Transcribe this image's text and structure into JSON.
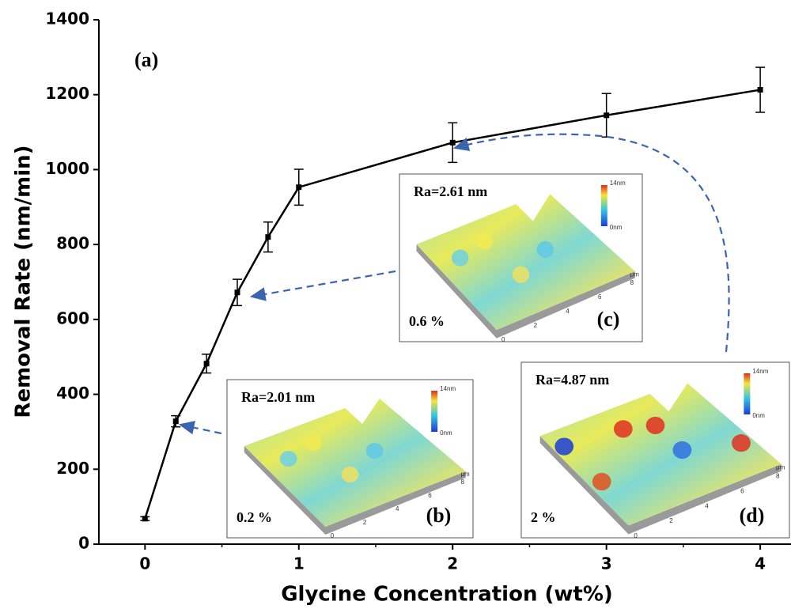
{
  "chart_data": {
    "type": "line",
    "annotation": "(a)",
    "x_label": "Glycine Concentration (wt%)",
    "y_label": "Removal Rate (nm/min)",
    "x": [
      0,
      0.2,
      0.4,
      0.6,
      0.8,
      1,
      2,
      3,
      4
    ],
    "series": [
      {
        "color": "#000000",
        "values": [
          68,
          328,
          482,
          672,
          820,
          953,
          1072,
          1145,
          1213
        ],
        "errors": [
          5,
          15,
          25,
          35,
          40,
          48,
          53,
          58,
          60
        ]
      }
    ],
    "xlim": [
      -0.3,
      4.2
    ],
    "xticks": [
      0,
      1,
      2,
      3,
      4
    ],
    "ylim": [
      0,
      1400
    ],
    "yticks": [
      0,
      200,
      400,
      600,
      800,
      1000,
      1200,
      1400
    ],
    "insets": [
      {
        "ra": "Ra=2.61 nm",
        "concentration": "0.6 %",
        "label": "(c)",
        "zmax": "14nm",
        "zmin": "0nm",
        "unit": "μm",
        "ticks": [
          0,
          2,
          4,
          6,
          8
        ]
      },
      {
        "ra": "Ra=2.01 nm",
        "concentration": "0.2 %",
        "label": "(b)",
        "zmax": "14nm",
        "zmin": "0nm",
        "unit": "μm",
        "ticks": [
          0,
          2,
          4,
          6,
          8
        ]
      },
      {
        "ra": "Ra=4.87 nm",
        "concentration": "2 %",
        "label": "(d)",
        "zmax": "14nm",
        "zmin": "0nm",
        "unit": "μm",
        "ticks": [
          0,
          2,
          4,
          6,
          8
        ]
      }
    ]
  }
}
